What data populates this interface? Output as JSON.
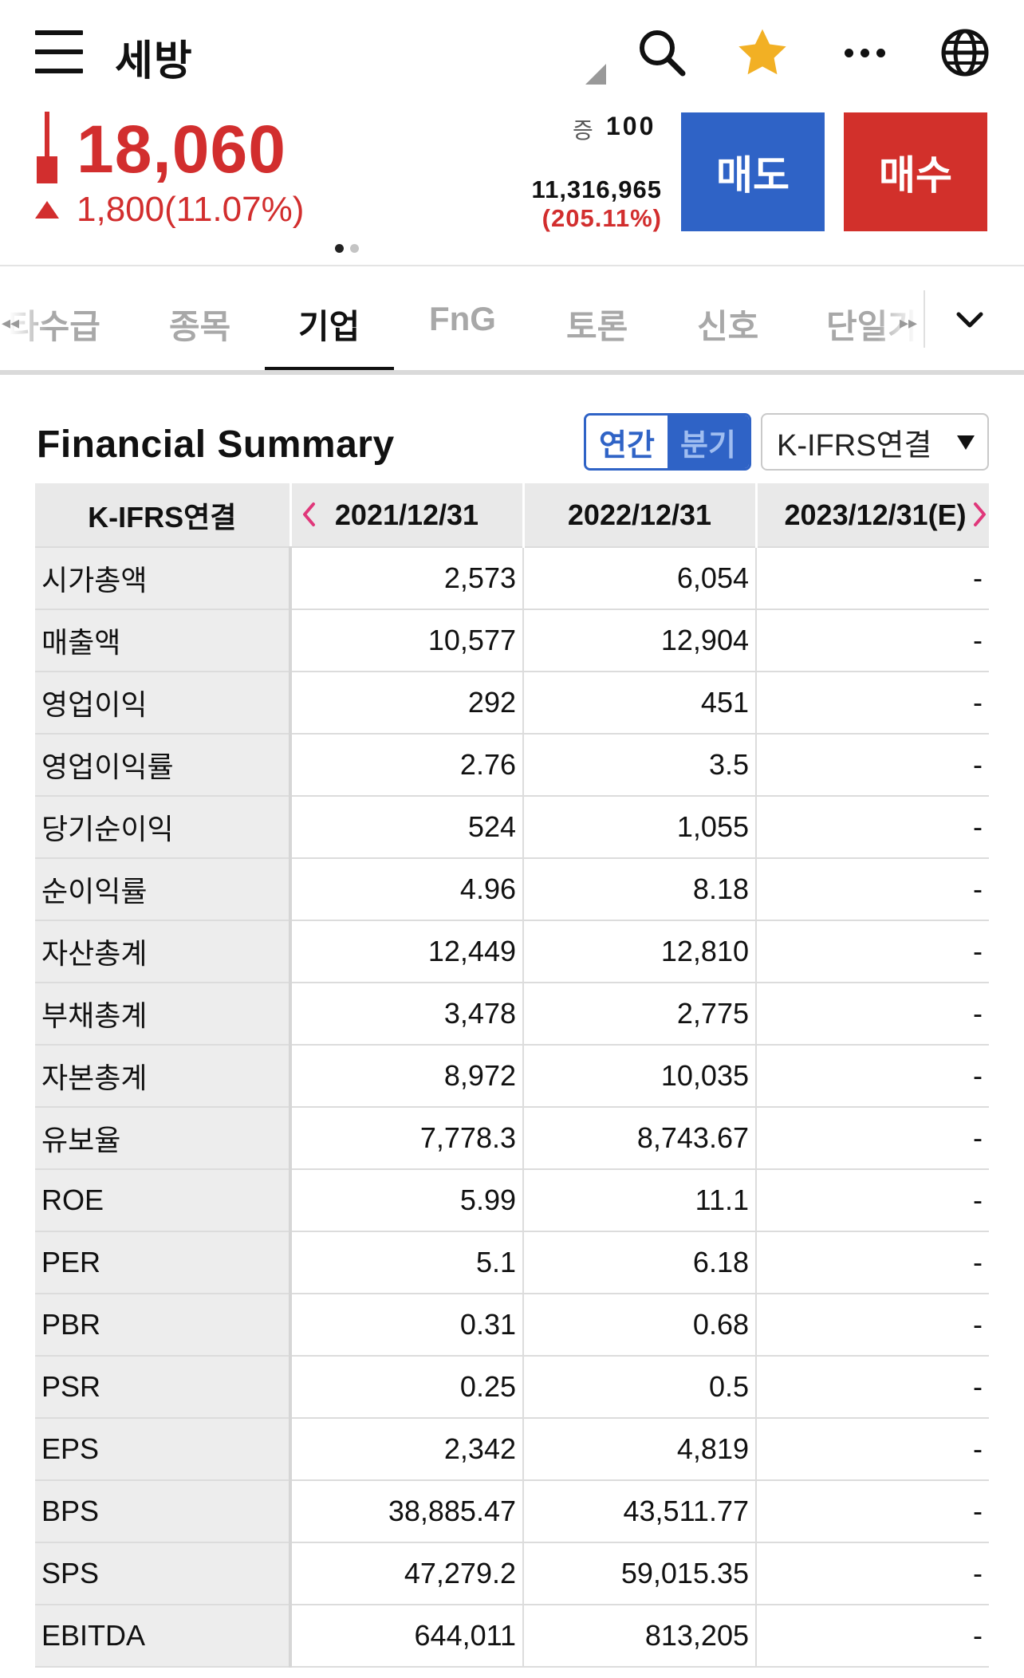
{
  "header": {
    "stock_name": "세방"
  },
  "quote": {
    "price": "18,060",
    "change": "1,800(11.07%)",
    "volume_unit_label": "증",
    "volume_unit_value": "100",
    "volume": "11,316,965",
    "volume_pct": "(205.11%)",
    "up_color": "#d22e2e"
  },
  "actions": {
    "sell_label": "매도",
    "buy_label": "매수",
    "sell_color": "#2f63c6",
    "buy_color": "#d2302b"
  },
  "tabs": [
    {
      "label": "타수급"
    },
    {
      "label": "종목"
    },
    {
      "label": "기업",
      "active": true
    },
    {
      "label": "FnG"
    },
    {
      "label": "토론"
    },
    {
      "label": "신호"
    },
    {
      "label": "단일가"
    }
  ],
  "section": {
    "title": "Financial Summary",
    "period_annual": "연간",
    "period_quarter": "분기",
    "standard": "K-IFRS연결"
  },
  "table": {
    "columns": [
      "K-IFRS연결",
      "2021/12/31",
      "2022/12/31",
      "2023/12/31(E)"
    ],
    "rows": [
      {
        "label": "시가총액",
        "values": [
          "2,573",
          "6,054",
          "-"
        ]
      },
      {
        "label": "매출액",
        "values": [
          "10,577",
          "12,904",
          "-"
        ]
      },
      {
        "label": "영업이익",
        "values": [
          "292",
          "451",
          "-"
        ]
      },
      {
        "label": "영업이익률",
        "values": [
          "2.76",
          "3.5",
          "-"
        ]
      },
      {
        "label": "당기순이익",
        "values": [
          "524",
          "1,055",
          "-"
        ]
      },
      {
        "label": "순이익률",
        "values": [
          "4.96",
          "8.18",
          "-"
        ]
      },
      {
        "label": "자산총계",
        "values": [
          "12,449",
          "12,810",
          "-"
        ]
      },
      {
        "label": "부채총계",
        "values": [
          "3,478",
          "2,775",
          "-"
        ]
      },
      {
        "label": "자본총계",
        "values": [
          "8,972",
          "10,035",
          "-"
        ]
      },
      {
        "label": "유보율",
        "values": [
          "7,778.3",
          "8,743.67",
          "-"
        ]
      },
      {
        "label": "ROE",
        "values": [
          "5.99",
          "11.1",
          "-"
        ]
      },
      {
        "label": "PER",
        "values": [
          "5.1",
          "6.18",
          "-"
        ]
      },
      {
        "label": "PBR",
        "values": [
          "0.31",
          "0.68",
          "-"
        ]
      },
      {
        "label": "PSR",
        "values": [
          "0.25",
          "0.5",
          "-"
        ]
      },
      {
        "label": "EPS",
        "values": [
          "2,342",
          "4,819",
          "-"
        ]
      },
      {
        "label": "BPS",
        "values": [
          "38,885.47",
          "43,511.77",
          "-"
        ]
      },
      {
        "label": "SPS",
        "values": [
          "47,279.2",
          "59,015.35",
          "-"
        ]
      },
      {
        "label": "EBITDA",
        "values": [
          "644,011",
          "813,205",
          "-"
        ]
      }
    ]
  }
}
